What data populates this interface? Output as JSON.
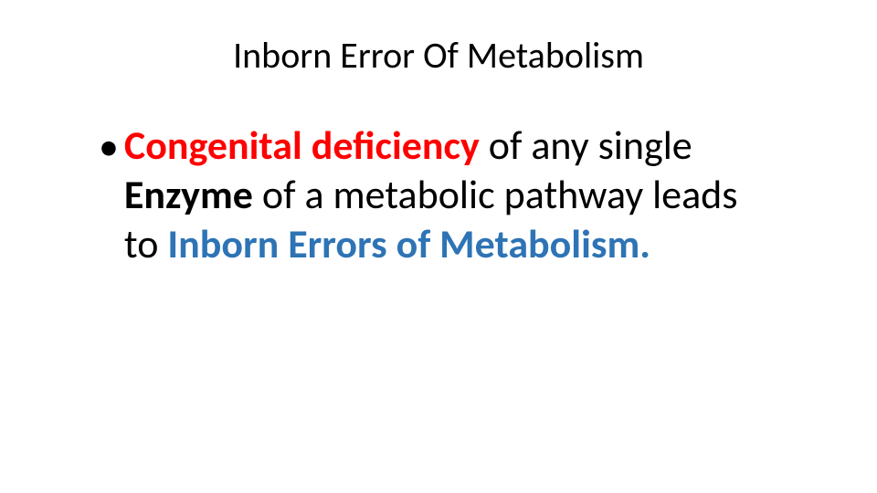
{
  "slide": {
    "title": "Inborn Error Of Metabolism",
    "title_color": "#000000",
    "title_fontsize": 40,
    "title_fontweight": 400,
    "background_color": "#ffffff",
    "bullet": {
      "marker": "•",
      "segments": {
        "s1": {
          "text": "Congenital deficiency ",
          "weight": 700,
          "color": "#ff0000"
        },
        "s2": {
          "text": "of any single ",
          "weight": 400,
          "color": "#000000"
        },
        "s3": {
          "text": "Enzyme ",
          "weight": 700,
          "color": "#000000"
        },
        "s4": {
          "text": "of a metabolic pathway leads to ",
          "weight": 400,
          "color": "#000000"
        },
        "s5": {
          "text": "Inborn Errors of Metabolism.",
          "weight": 700,
          "color": "#2e74b5"
        }
      },
      "body_fontsize": 44,
      "body_lineheight": 54
    }
  }
}
